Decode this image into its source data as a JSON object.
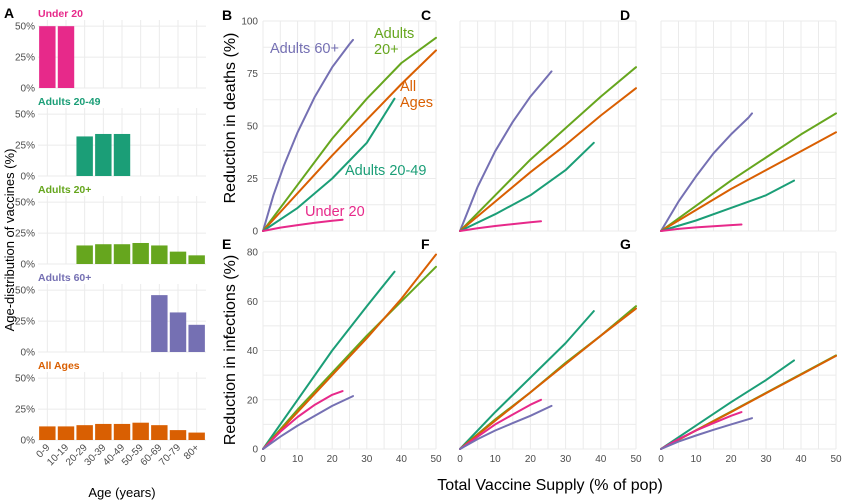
{
  "chart_data": {
    "colors": {
      "under20": "#e7298a",
      "adults2049": "#1b9e77",
      "adults20plus": "#66a61e",
      "adults60plus": "#7570b3",
      "allages": "#d95f02"
    },
    "bar_panel": {
      "letter": "A",
      "type": "bar",
      "ylabel": "Age-distribution of vaccines (%)",
      "xlabel": "Age (years)",
      "categories": [
        "0-9",
        "10-19",
        "20-29",
        "30-39",
        "40-49",
        "50-59",
        "60-69",
        "70-79",
        "80+"
      ],
      "yticks": [
        "0%",
        "25%",
        "50%"
      ],
      "ylim": [
        0,
        55
      ],
      "subplots": [
        {
          "title": "Under 20",
          "color_key": "under20",
          "values": [
            50,
            50,
            0,
            0,
            0,
            0,
            0,
            0,
            0
          ]
        },
        {
          "title": "Adults 20-49",
          "color_key": "adults2049",
          "values": [
            0,
            0,
            32,
            34,
            34,
            0,
            0,
            0,
            0
          ]
        },
        {
          "title": "Adults 20+",
          "color_key": "adults20plus",
          "values": [
            0,
            0,
            15,
            16,
            16,
            17,
            15,
            10,
            7
          ]
        },
        {
          "title": "Adults 60+",
          "color_key": "adults60plus",
          "values": [
            0,
            0,
            0,
            0,
            0,
            0,
            46,
            32,
            22
          ]
        },
        {
          "title": "All Ages",
          "color_key": "allages",
          "values": [
            11,
            11,
            12,
            13,
            13,
            14,
            12,
            8,
            6
          ]
        }
      ]
    },
    "line_panels": {
      "type": "line",
      "xlabel": "Total Vaccine Supply (% of pop)",
      "xlim": [
        0,
        50
      ],
      "xticks": [
        0,
        10,
        20,
        30,
        40,
        50
      ],
      "rows": [
        {
          "ylabel": "Reduction in deaths (%)",
          "ylim": [
            0,
            100
          ],
          "yticks": [
            0,
            25,
            50,
            75,
            100
          ]
        },
        {
          "ylabel": "Reduction in infections (%)",
          "ylim": [
            0,
            80
          ],
          "yticks": [
            0,
            20,
            40,
            60,
            80
          ]
        }
      ],
      "panels": [
        {
          "letter": "B",
          "row": 0,
          "show_y": true,
          "series": [
            {
              "name": "Adults 60+",
              "color_key": "adults60plus",
              "x": [
                0,
                3,
                6,
                10,
                15,
                20,
                25,
                26
              ],
              "y": [
                0,
                17,
                31,
                47,
                64,
                78,
                89,
                91
              ]
            },
            {
              "name": "Adults 20+",
              "color_key": "adults20plus",
              "x": [
                0,
                10,
                20,
                30,
                40,
                50
              ],
              "y": [
                0,
                22,
                44,
                63,
                80,
                92
              ]
            },
            {
              "name": "All Ages",
              "color_key": "allages",
              "x": [
                0,
                10,
                20,
                30,
                40,
                50
              ],
              "y": [
                0,
                18,
                36,
                53,
                70,
                86
              ]
            },
            {
              "name": "Adults 20-49",
              "color_key": "adults2049",
              "x": [
                0,
                10,
                20,
                30,
                38
              ],
              "y": [
                0,
                11,
                25,
                42,
                63
              ]
            },
            {
              "name": "Under 20",
              "color_key": "under20",
              "x": [
                0,
                5,
                10,
                15,
                20,
                23
              ],
              "y": [
                0,
                1.6,
                2.8,
                3.9,
                4.9,
                5.4
              ]
            }
          ]
        },
        {
          "letter": "C",
          "row": 0,
          "show_y": false,
          "series": [
            {
              "name": "Adults 60+",
              "color_key": "adults60plus",
              "x": [
                0,
                5,
                10,
                15,
                20,
                25,
                26
              ],
              "y": [
                0,
                21,
                38,
                52,
                64,
                74,
                76
              ]
            },
            {
              "name": "Adults 20+",
              "color_key": "adults20plus",
              "x": [
                0,
                10,
                20,
                30,
                40,
                50
              ],
              "y": [
                0,
                17,
                34,
                49,
                64,
                78
              ]
            },
            {
              "name": "All Ages",
              "color_key": "allages",
              "x": [
                0,
                10,
                20,
                30,
                40,
                50
              ],
              "y": [
                0,
                14,
                28,
                41,
                55,
                68
              ]
            },
            {
              "name": "Adults 20-49",
              "color_key": "adults2049",
              "x": [
                0,
                10,
                20,
                30,
                38
              ],
              "y": [
                0,
                8,
                17,
                29,
                42
              ]
            },
            {
              "name": "Under 20",
              "color_key": "under20",
              "x": [
                0,
                5,
                10,
                15,
                20,
                23
              ],
              "y": [
                0,
                1.3,
                2.4,
                3.3,
                4.2,
                4.6
              ]
            }
          ]
        },
        {
          "letter": "D",
          "row": 0,
          "show_y": false,
          "series": [
            {
              "name": "Adults 60+",
              "color_key": "adults60plus",
              "x": [
                0,
                5,
                10,
                15,
                20,
                25,
                26
              ],
              "y": [
                0,
                14,
                26,
                37,
                46,
                54,
                56
              ]
            },
            {
              "name": "Adults 20+",
              "color_key": "adults20plus",
              "x": [
                0,
                10,
                20,
                30,
                40,
                50
              ],
              "y": [
                0,
                12,
                24,
                35,
                46,
                56
              ]
            },
            {
              "name": "All Ages",
              "color_key": "allages",
              "x": [
                0,
                10,
                20,
                30,
                40,
                50
              ],
              "y": [
                0,
                10,
                20,
                29,
                38,
                47
              ]
            },
            {
              "name": "Adults 20-49",
              "color_key": "adults2049",
              "x": [
                0,
                10,
                20,
                30,
                38
              ],
              "y": [
                0,
                5,
                11,
                17,
                24
              ]
            },
            {
              "name": "Under 20",
              "color_key": "under20",
              "x": [
                0,
                5,
                10,
                15,
                20,
                23
              ],
              "y": [
                0,
                1,
                1.7,
                2.3,
                2.8,
                3.1
              ]
            }
          ]
        },
        {
          "letter": "E",
          "row": 1,
          "show_y": true,
          "series": [
            {
              "name": "Adults 20-49",
              "color_key": "adults2049",
              "x": [
                0,
                10,
                20,
                30,
                38
              ],
              "y": [
                0,
                20,
                40,
                58,
                72
              ]
            },
            {
              "name": "Adults 20+",
              "color_key": "adults20plus",
              "x": [
                0,
                10,
                20,
                30,
                40,
                50
              ],
              "y": [
                0,
                16,
                31,
                46,
                60,
                74
              ]
            },
            {
              "name": "All Ages",
              "color_key": "allages",
              "x": [
                0,
                10,
                20,
                30,
                40,
                50
              ],
              "y": [
                0,
                15,
                30,
                45,
                61,
                79
              ]
            },
            {
              "name": "Under 20",
              "color_key": "under20",
              "x": [
                0,
                5,
                10,
                15,
                20,
                23
              ],
              "y": [
                0,
                7,
                13,
                18,
                22,
                23.5
              ]
            },
            {
              "name": "Adults 60+",
              "color_key": "adults60plus",
              "x": [
                0,
                5,
                10,
                15,
                20,
                26
              ],
              "y": [
                0,
                5,
                9.5,
                13.5,
                17.5,
                21.5
              ]
            }
          ]
        },
        {
          "letter": "F",
          "row": 1,
          "show_y": false,
          "series": [
            {
              "name": "Adults 20-49",
              "color_key": "adults2049",
              "x": [
                0,
                10,
                20,
                30,
                38
              ],
              "y": [
                0,
                15,
                29,
                43,
                56
              ]
            },
            {
              "name": "Adults 20+",
              "color_key": "adults20plus",
              "x": [
                0,
                10,
                20,
                30,
                40,
                50
              ],
              "y": [
                0,
                12,
                23,
                35,
                46,
                58
              ]
            },
            {
              "name": "All Ages",
              "color_key": "allages",
              "x": [
                0,
                10,
                20,
                30,
                40,
                50
              ],
              "y": [
                0,
                11.5,
                23,
                34.5,
                46,
                57
              ]
            },
            {
              "name": "Under 20",
              "color_key": "under20",
              "x": [
                0,
                5,
                10,
                15,
                20,
                23
              ],
              "y": [
                0,
                5,
                10,
                14,
                18,
                20
              ]
            },
            {
              "name": "Adults 60+",
              "color_key": "adults60plus",
              "x": [
                0,
                5,
                10,
                15,
                20,
                26
              ],
              "y": [
                0,
                4,
                7.5,
                10.5,
                13.5,
                17.5
              ]
            }
          ]
        },
        {
          "letter": "G",
          "row": 1,
          "show_y": false,
          "series": [
            {
              "name": "Adults 20-49",
              "color_key": "adults2049",
              "x": [
                0,
                10,
                20,
                30,
                38
              ],
              "y": [
                0,
                9.5,
                19,
                28,
                36
              ]
            },
            {
              "name": "Adults 20+",
              "color_key": "adults20plus",
              "x": [
                0,
                10,
                20,
                30,
                40,
                50
              ],
              "y": [
                0,
                7.6,
                15.2,
                22.8,
                30.4,
                38
              ]
            },
            {
              "name": "All Ages",
              "color_key": "allages",
              "x": [
                0,
                10,
                20,
                30,
                40,
                50
              ],
              "y": [
                0,
                7.5,
                15,
                22.6,
                30.2,
                37.8
              ]
            },
            {
              "name": "Under 20",
              "color_key": "under20",
              "x": [
                0,
                5,
                10,
                15,
                20,
                23
              ],
              "y": [
                0,
                4,
                7.5,
                10.5,
                13.5,
                15
              ]
            },
            {
              "name": "Adults 60+",
              "color_key": "adults60plus",
              "x": [
                0,
                5,
                10,
                15,
                20,
                26
              ],
              "y": [
                0,
                3,
                5.5,
                7.8,
                10,
                12.5
              ]
            }
          ]
        }
      ],
      "annotations": [
        {
          "panel": "B",
          "text": "Adults 60+",
          "color_key": "adults60plus"
        },
        {
          "panel": "B",
          "lines": [
            "Adults",
            "20+"
          ],
          "color_key": "adults20plus"
        },
        {
          "panel": "B",
          "lines": [
            "All",
            "Ages"
          ],
          "color_key": "allages"
        },
        {
          "panel": "B",
          "text": "Adults 20-49",
          "color_key": "adults2049"
        },
        {
          "panel": "B",
          "text": "Under 20",
          "color_key": "under20"
        }
      ]
    }
  }
}
